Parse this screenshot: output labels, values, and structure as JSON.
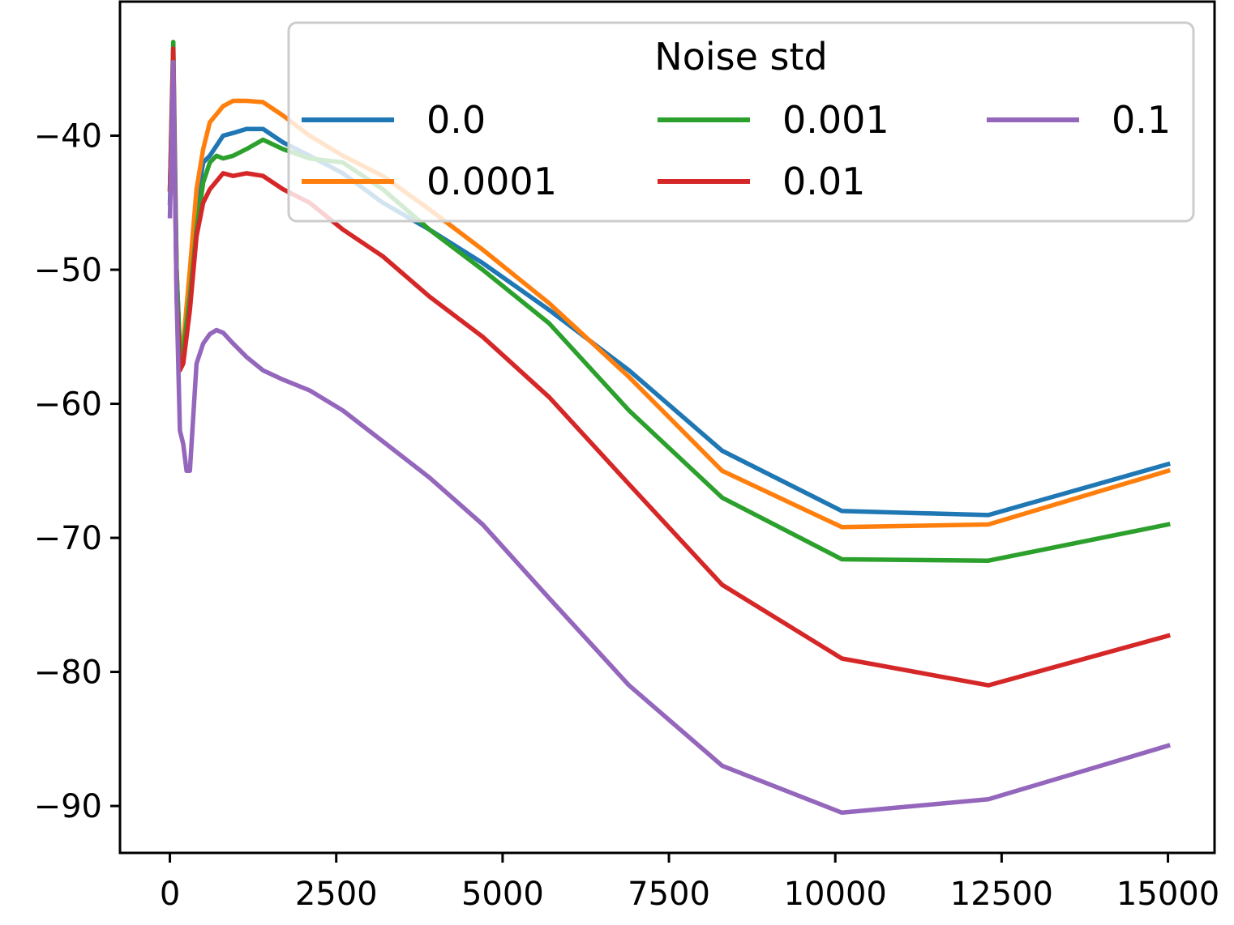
{
  "chart_data": {
    "type": "line",
    "title": "",
    "xlabel": "",
    "ylabel": "",
    "xlim": [
      -750,
      15700
    ],
    "ylim": [
      -93.5,
      -30
    ],
    "xticks": [
      0,
      2500,
      5000,
      7500,
      10000,
      12500,
      15000
    ],
    "yticks": [
      -90,
      -80,
      -70,
      -60,
      -50,
      -40
    ],
    "ytick_labels": [
      "−90",
      "−80",
      "−70",
      "−60",
      "−50",
      "−40"
    ],
    "grid": false,
    "legend": {
      "title": "Noise std",
      "placement": "top-right",
      "columns": 3
    },
    "series": [
      {
        "name": "0.0",
        "color": "#1f77b4",
        "x": [
          0,
          50,
          100,
          150,
          200,
          300,
          400,
          500,
          600,
          800,
          950,
          1150,
          1400,
          1700,
          2100,
          2600,
          3200,
          3900,
          4700,
          5700,
          6900,
          8300,
          10100,
          12300,
          15000
        ],
        "y": [
          -45,
          -36,
          -50,
          -56,
          -56,
          -51,
          -45,
          -42,
          -41.5,
          -40,
          -39.8,
          -39.5,
          -39.5,
          -40.5,
          -41.5,
          -42.8,
          -45,
          -47,
          -49.5,
          -53,
          -57.5,
          -63.5,
          -68,
          -68.3,
          -64.5
        ]
      },
      {
        "name": "0.0001",
        "color": "#ff7f0e",
        "x": [
          0,
          50,
          100,
          150,
          200,
          300,
          400,
          500,
          600,
          800,
          950,
          1150,
          1400,
          1700,
          2100,
          2600,
          3200,
          3900,
          4700,
          5700,
          6900,
          8300,
          10100,
          12300,
          15000
        ],
        "y": [
          -44,
          -35,
          -50,
          -56.5,
          -55.5,
          -50,
          -44,
          -41,
          -39,
          -37.8,
          -37.4,
          -37.4,
          -37.5,
          -38.5,
          -40,
          -41.5,
          -43,
          -45.5,
          -48.5,
          -52.5,
          -58,
          -65,
          -69.2,
          -69,
          -65
        ]
      },
      {
        "name": "0.001",
        "color": "#2ca02c",
        "x": [
          0,
          50,
          100,
          150,
          200,
          300,
          400,
          500,
          600,
          700,
          800,
          950,
          1150,
          1400,
          1700,
          2100,
          2600,
          3200,
          3900,
          4700,
          5700,
          6900,
          8300,
          10100,
          12300,
          15000
        ],
        "y": [
          -44,
          -33,
          -50,
          -56.5,
          -56,
          -52,
          -47,
          -43.5,
          -42,
          -41.5,
          -41.7,
          -41.5,
          -41,
          -40.3,
          -41,
          -41.7,
          -42,
          -44,
          -47,
          -50,
          -54,
          -60.5,
          -67,
          -71.6,
          -71.7,
          -69
        ]
      },
      {
        "name": "0.01",
        "color": "#d62728",
        "x": [
          0,
          50,
          100,
          150,
          200,
          300,
          400,
          500,
          600,
          800,
          950,
          1150,
          1400,
          1700,
          2100,
          2600,
          3200,
          3900,
          4700,
          5700,
          6900,
          8300,
          10100,
          12300,
          15000
        ],
        "y": [
          -44,
          -33.5,
          -52,
          -57.5,
          -57,
          -53,
          -47.5,
          -45,
          -44,
          -42.8,
          -43,
          -42.8,
          -43,
          -44,
          -45,
          -47,
          -49,
          -52,
          -55,
          -59.5,
          -66,
          -73.5,
          -79,
          -81,
          -77.3
        ]
      },
      {
        "name": "0.1",
        "color": "#9467bd",
        "x": [
          0,
          50,
          100,
          150,
          200,
          250,
          300,
          350,
          400,
          500,
          600,
          700,
          800,
          950,
          1150,
          1400,
          1700,
          2100,
          2600,
          3200,
          3900,
          4700,
          5700,
          6900,
          8300,
          10100,
          12300,
          15000
        ],
        "y": [
          -46,
          -34.5,
          -52,
          -62,
          -63,
          -65,
          -65,
          -61,
          -57,
          -55.5,
          -54.8,
          -54.5,
          -54.7,
          -55.5,
          -56.5,
          -57.5,
          -58.2,
          -59,
          -60.5,
          -62.8,
          -65.5,
          -69,
          -74.5,
          -81,
          -87,
          -90.5,
          -89.5,
          -85.5
        ]
      }
    ]
  }
}
